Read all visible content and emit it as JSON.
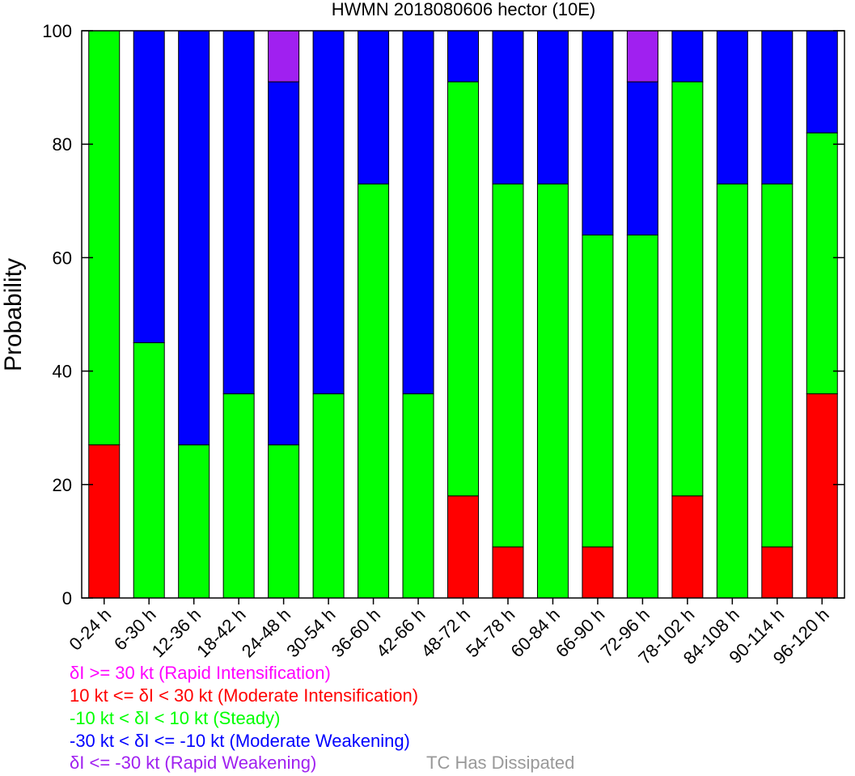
{
  "chart_data": {
    "type": "bar",
    "stacked": true,
    "title": "HWMN 2018080606 hector (10E)",
    "xlabel": "",
    "ylabel": "Probability",
    "ylim": [
      0,
      100
    ],
    "yticks": [
      0,
      20,
      40,
      60,
      80,
      100
    ],
    "grid": false,
    "categories": [
      "0-24 h",
      "6-30 h",
      "12-36 h",
      "18-42 h",
      "24-48 h",
      "30-54 h",
      "36-60 h",
      "42-66 h",
      "48-72 h",
      "54-78 h",
      "60-84 h",
      "66-90 h",
      "72-96 h",
      "78-102 h",
      "84-108 h",
      "90-114 h",
      "96-120 h"
    ],
    "series": [
      {
        "key": "mi",
        "color": "#ff0000",
        "values": [
          27,
          0,
          0,
          0,
          0,
          0,
          0,
          0,
          18,
          9,
          0,
          9,
          0,
          18,
          0,
          9,
          36
        ]
      },
      {
        "key": "st",
        "color": "#00ff00",
        "values": [
          73,
          45,
          27,
          36,
          27,
          36,
          73,
          36,
          73,
          64,
          73,
          55,
          64,
          73,
          73,
          64,
          46
        ]
      },
      {
        "key": "mw",
        "color": "#0000ff",
        "values": [
          0,
          55,
          73,
          64,
          64,
          64,
          27,
          64,
          9,
          27,
          27,
          36,
          27,
          9,
          27,
          27,
          18
        ]
      },
      {
        "key": "rw",
        "color": "#a020f0",
        "values": [
          0,
          0,
          0,
          0,
          9,
          0,
          0,
          0,
          0,
          0,
          0,
          0,
          9,
          0,
          0,
          0,
          0
        ]
      }
    ]
  },
  "legend": {
    "ri": {
      "text": "δI >= 30 kt (Rapid Intensification)",
      "color": "#ff00ff"
    },
    "mi": {
      "text": "10 kt <= δI < 30 kt (Moderate Intensification)",
      "color": "#ff0000"
    },
    "st": {
      "text": "-10 kt < δI < 10 kt (Steady)",
      "color": "#00ff00"
    },
    "mw": {
      "text": "-30 kt < δI <= -10 kt (Moderate Weakening)",
      "color": "#0000ff"
    },
    "rw": {
      "text": "δI <= -30 kt (Rapid Weakening)",
      "color": "#a020f0"
    },
    "dissipated": {
      "text": "TC Has Dissipated",
      "color": "#999999"
    }
  }
}
